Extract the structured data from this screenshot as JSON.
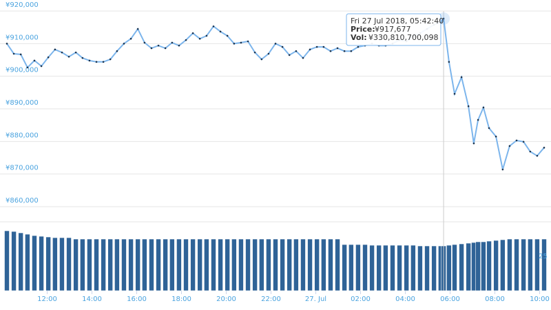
{
  "chart_data": {
    "type": "line",
    "x": [
      10.2,
      10.51,
      10.82,
      11.12,
      11.43,
      11.74,
      12.05,
      12.35,
      12.66,
      12.97,
      13.28,
      13.58,
      13.89,
      14.2,
      14.51,
      14.82,
      15.12,
      15.43,
      15.74,
      16.05,
      16.35,
      16.66,
      16.97,
      17.28,
      17.58,
      17.89,
      18.2,
      18.51,
      18.82,
      19.12,
      19.43,
      19.74,
      20.05,
      20.35,
      20.66,
      20.97,
      21.28,
      21.58,
      21.89,
      22.2,
      22.51,
      22.82,
      23.12,
      23.43,
      23.74,
      24.05,
      24.35,
      24.66,
      24.97,
      25.28,
      25.58,
      25.89,
      26.2,
      26.51,
      26.82,
      27.12,
      27.43,
      27.74,
      28.05,
      28.35,
      28.66,
      28.97,
      29.28,
      29.58,
      29.71,
      29.95,
      30.2,
      30.51,
      30.82,
      31.06,
      31.25,
      31.49,
      31.74,
      32.05,
      32.35,
      32.66,
      32.97,
      33.28,
      33.58,
      33.89,
      34.2
    ],
    "xlim": [
      10.2,
      34.2
    ],
    "xticks": [
      {
        "value": 12,
        "label": "12:00"
      },
      {
        "value": 14,
        "label": "14:00"
      },
      {
        "value": 16,
        "label": "16:00"
      },
      {
        "value": 18,
        "label": "18:00"
      },
      {
        "value": 20,
        "label": "20:00"
      },
      {
        "value": 22,
        "label": "22:00"
      },
      {
        "value": 24,
        "label": "27. Jul"
      },
      {
        "value": 26,
        "label": "02:00"
      },
      {
        "value": 28,
        "label": "04:00"
      },
      {
        "value": 30,
        "label": "06:00"
      },
      {
        "value": 32,
        "label": "08:00"
      },
      {
        "value": 34,
        "label": "10:00"
      }
    ],
    "ylim": [
      860000,
      920000
    ],
    "yticks": [
      {
        "value": 860000,
        "label": "¥860,000"
      },
      {
        "value": 870000,
        "label": "¥870,000"
      },
      {
        "value": 880000,
        "label": "¥880,000"
      },
      {
        "value": 890000,
        "label": "¥890,000"
      },
      {
        "value": 900000,
        "label": "¥900,000"
      },
      {
        "value": 910000,
        "label": "¥910,000"
      },
      {
        "value": 920000,
        "label": "¥920,000"
      }
    ],
    "grid": true,
    "series": [
      {
        "color": "#7cb5ec",
        "marker_color": "#1c3550",
        "values": [
          910000,
          906900,
          906700,
          902700,
          904800,
          903100,
          905800,
          908200,
          907300,
          906000,
          907300,
          905600,
          904800,
          904400,
          904400,
          905200,
          907700,
          910000,
          911500,
          914500,
          910300,
          908600,
          909400,
          908600,
          910300,
          909400,
          911100,
          913200,
          911500,
          912400,
          915300,
          913700,
          912400,
          910000,
          910300,
          910700,
          907300,
          905200,
          906900,
          910000,
          909000,
          906500,
          907700,
          905600,
          908200,
          909000,
          909000,
          907700,
          908600,
          907700,
          907700,
          909000,
          909400,
          910000,
          909400,
          909400,
          910000,
          911100,
          910700,
          912400,
          913200,
          914500,
          915800,
          916600,
          917677,
          904400,
          894600,
          899700,
          890800,
          879400,
          886600,
          890400,
          884100,
          881500,
          871400,
          878600,
          880300,
          879900,
          876900,
          875600,
          878100
        ]
      }
    ],
    "volume": {
      "color": "#2f6397",
      "ylim": [
        0,
        50
      ],
      "yticks": [
        25
      ],
      "values": [
        43.5,
        43,
        42,
        41,
        40,
        39.5,
        39,
        38.5,
        38.5,
        38.5,
        37.5,
        37.5,
        37.5,
        37.5,
        37.5,
        37.5,
        37.5,
        37.5,
        37.5,
        37.5,
        37.5,
        37.5,
        37.5,
        37.5,
        37.5,
        37.5,
        37.5,
        37.5,
        37.5,
        37.5,
        37.5,
        37.5,
        37.5,
        37.5,
        37.5,
        37.5,
        37.5,
        37.5,
        37.5,
        37.5,
        37.5,
        37.5,
        37.5,
        37.5,
        37.5,
        37.5,
        37.5,
        37.5,
        37.5,
        33.5,
        33.5,
        33.5,
        33.5,
        33,
        33,
        33,
        33,
        33,
        33,
        33,
        32.5,
        32.5,
        32.5,
        32.5,
        32.5,
        33,
        33.5,
        34,
        34.5,
        35,
        35.5,
        35.5,
        36,
        36.5,
        37,
        37.5,
        37.5,
        37.5,
        37.5,
        37.5,
        37.5
      ]
    },
    "tooltip": {
      "title": "Fri 27 Jul 2018, 05:42:40",
      "price_label": "Price:",
      "price": "¥917,677",
      "vol_label": "Vol:",
      "vol": "¥330,810,700,098",
      "index": 64
    }
  }
}
